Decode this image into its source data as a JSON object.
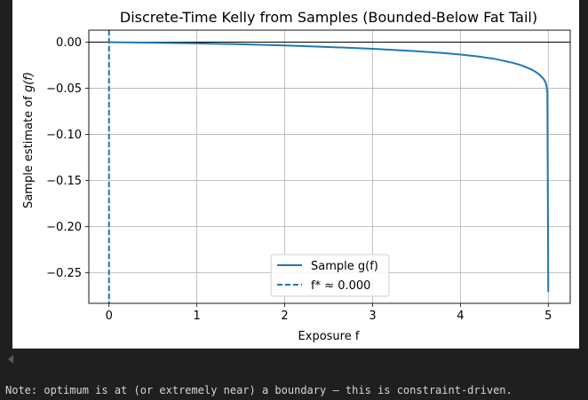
{
  "chart_data": {
    "type": "line",
    "title": "Discrete-Time Kelly from Samples (Bounded-Below Fat Tail)",
    "xlabel": "Exposure f",
    "ylabel_prefix": "Sample estimate of ",
    "ylabel_math": "g(f)",
    "xlim": [
      -0.23,
      5.25
    ],
    "ylim": [
      -0.283,
      0.013
    ],
    "xticks": [
      0,
      1,
      2,
      3,
      4,
      5
    ],
    "xtick_labels": [
      "0",
      "1",
      "2",
      "3",
      "4",
      "5"
    ],
    "yticks": [
      0.0,
      -0.05,
      -0.1,
      -0.15,
      -0.2,
      -0.25
    ],
    "ytick_labels": [
      "0.00",
      "−0.05",
      "−0.10",
      "−0.15",
      "−0.20",
      "−0.25"
    ],
    "grid": true,
    "hline_y": 0,
    "legend_position": "lower-center",
    "series": [
      {
        "name": "Sample g(f)",
        "style": "solid",
        "color": "#1f77b4",
        "x": [
          0,
          0.5,
          1.0,
          1.5,
          2.0,
          2.5,
          3.0,
          3.5,
          3.8,
          4.0,
          4.2,
          4.4,
          4.6,
          4.7,
          4.8,
          4.85,
          4.9,
          4.95,
          4.97,
          4.98,
          4.99,
          5.0
        ],
        "y": [
          0.0,
          -0.0006,
          -0.0013,
          -0.0023,
          -0.0036,
          -0.0052,
          -0.0072,
          -0.0098,
          -0.0118,
          -0.0134,
          -0.0155,
          -0.0183,
          -0.0225,
          -0.0253,
          -0.0292,
          -0.0318,
          -0.0352,
          -0.0402,
          -0.0438,
          -0.0478,
          -0.056,
          -0.27
        ]
      },
      {
        "name": "f* ≈ 0.000",
        "style": "dashed",
        "color": "#1f77b4",
        "vline_x": 0
      }
    ]
  },
  "note": "Note: optimum is at (or extremely near) a boundary — this is constraint-driven."
}
